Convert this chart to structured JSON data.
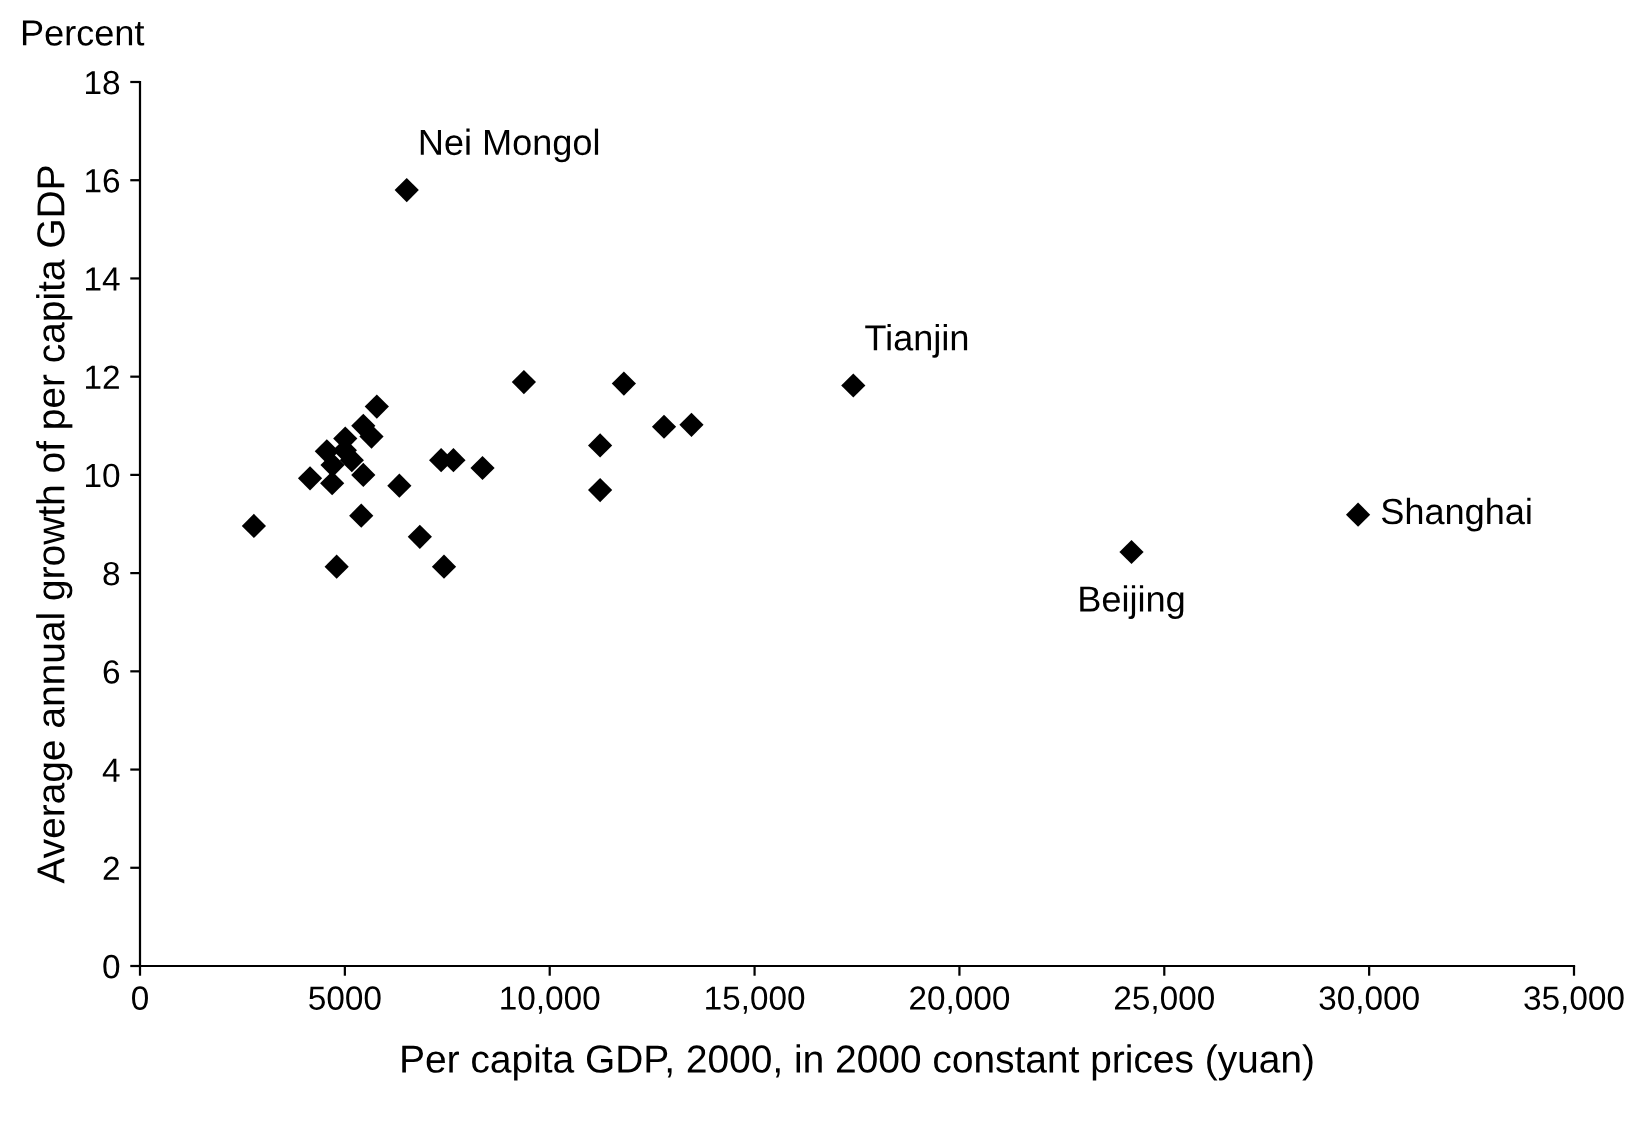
{
  "chart_data": {
    "type": "scatter",
    "title": "Percent",
    "xlabel": "Per capita GDP, 2000, in 2000 constant prices (yuan)",
    "ylabel": "Average annual growth of per capita GDP",
    "x": [
      2780,
      4800,
      4150,
      4690,
      4560,
      5010,
      5170,
      5450,
      5450,
      5650,
      5780,
      5400,
      6330,
      6830,
      7420,
      7350,
      7650,
      8360,
      9370,
      11230,
      11230,
      11810,
      12790,
      13460,
      4700,
      5000,
      6510,
      17410,
      24200,
      29730
    ],
    "series": [
      {
        "color": "#000000",
        "values": [
          8.96,
          8.13,
          9.93,
          9.83,
          10.48,
          10.74,
          10.3,
          10.0,
          11.0,
          10.78,
          11.39,
          9.17,
          9.78,
          8.74,
          8.13,
          10.3,
          10.3,
          10.14,
          11.89,
          10.6,
          9.69,
          11.86,
          10.98,
          11.02,
          10.2,
          10.5,
          15.8,
          11.82,
          8.43,
          9.19
        ]
      }
    ],
    "annotations": [
      {
        "text": "Nei Mongol",
        "x": 6510,
        "y": 15.8
      },
      {
        "text": "Tianjin",
        "x": 17410,
        "y": 11.82
      },
      {
        "text": "Beijing",
        "x": 24200,
        "y": 8.43
      },
      {
        "text": "Shanghai",
        "x": 29730,
        "y": 9.19
      }
    ],
    "xlim": [
      0,
      35000
    ],
    "xticks": [
      0,
      {
        "value": 5000,
        "label": "5000"
      },
      {
        "value": 10000,
        "label": "10,000"
      },
      {
        "value": 15000,
        "label": "15,000"
      },
      {
        "value": 20000,
        "label": "20,000"
      },
      {
        "value": 25000,
        "label": "25,000"
      },
      {
        "value": 30000,
        "label": "30,000"
      },
      {
        "value": 35000,
        "label": "35,000"
      }
    ],
    "ylim": [
      0,
      18
    ],
    "yticks": [
      0,
      2,
      4,
      6,
      8,
      10,
      12,
      14,
      16,
      18
    ],
    "marker": "diamond",
    "grid": false,
    "legend": false
  }
}
